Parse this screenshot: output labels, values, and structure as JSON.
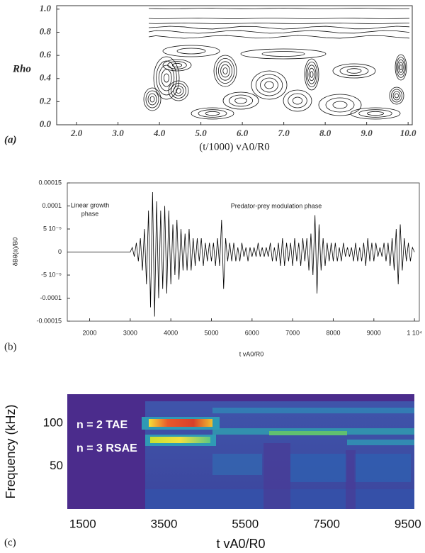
{
  "chart_data": [
    {
      "type": "contour",
      "panel_label": "(a)",
      "ylabel": "Rho",
      "xlabel": "(t/1000) vA0/R0",
      "xlim": [
        1.52,
        10.1
      ],
      "ylim": [
        0,
        1.03
      ],
      "xticks": [
        {
          "value": 2,
          "label": "2.0"
        },
        {
          "value": 3,
          "label": "3.0"
        },
        {
          "value": 4,
          "label": "4.0"
        },
        {
          "value": 5,
          "label": "5.0"
        },
        {
          "value": 6,
          "label": "6.0"
        },
        {
          "value": 7,
          "label": "7.0"
        },
        {
          "value": 8,
          "label": "8.0"
        },
        {
          "value": 9,
          "label": "9.0"
        },
        {
          "value": 10,
          "label": "10.0"
        }
      ],
      "yticks": [
        {
          "value": 0,
          "label": "0.0"
        },
        0.2,
        0.4,
        0.6,
        0.8,
        {
          "value": 1,
          "label": "1.0"
        }
      ]
    },
    {
      "type": "line",
      "panel_label": "(b)",
      "ylabel": "δBθ(a)/B0",
      "xlabel": "t vA0/R0",
      "color": "#000000",
      "annotations": [
        "Linear growth",
        "phase",
        "Predator-prey modulation phase"
      ],
      "xlim": [
        1450,
        10120
      ],
      "ylim": [
        -0.00015,
        0.00015
      ],
      "xticks": [
        2000,
        3000,
        4000,
        5000,
        6000,
        7000,
        8000,
        9000,
        {
          "value": 10000,
          "label": "1 10⁴"
        }
      ],
      "yticks": [
        0.00015,
        0.0001,
        {
          "value": 5e-05,
          "label": "5 10⁻⁵"
        },
        0,
        {
          "value": -5e-05,
          "label": "-5 10⁻⁵"
        },
        -0.0001,
        -0.00015
      ],
      "x": [
        1500,
        3000,
        3050,
        3100,
        3150,
        3200,
        3250,
        3300,
        3350,
        3400,
        3450,
        3500,
        3550,
        3600,
        3650,
        3700,
        3750,
        3800,
        3850,
        3900,
        3950,
        4000,
        4050,
        4100,
        4150,
        4200,
        4250,
        4300,
        4350,
        4400,
        4450,
        4500,
        4550,
        4600,
        4650,
        4700,
        4750,
        4800,
        4850,
        4900,
        4950,
        5000,
        5050,
        5100,
        5150,
        5200,
        5250,
        5300,
        5350,
        5400,
        5450,
        5500,
        5550,
        5600,
        5650,
        5700,
        5750,
        5800,
        5850,
        5900,
        5950,
        6000,
        6050,
        6100,
        6150,
        6200,
        6250,
        6300,
        6350,
        6400,
        6450,
        6500,
        6550,
        6600,
        6650,
        6700,
        6750,
        6800,
        6850,
        6900,
        6950,
        7000,
        7050,
        7100,
        7150,
        7200,
        7250,
        7300,
        7350,
        7400,
        7450,
        7500,
        7550,
        7600,
        7650,
        7700,
        7750,
        7800,
        7850,
        7900,
        7950,
        8000,
        8050,
        8100,
        8150,
        8200,
        8250,
        8300,
        8350,
        8400,
        8450,
        8500,
        8550,
        8600,
        8650,
        8700,
        8750,
        8800,
        8850,
        8900,
        8950,
        9000,
        9050,
        9100,
        9150,
        9200,
        9250,
        9300,
        9350,
        9400,
        9450,
        9500,
        9550,
        9600,
        9650,
        9700,
        9750,
        9800,
        9850,
        9900,
        9950,
        10000
      ],
      "values": [
        0,
        0,
        1e-05,
        -1e-05,
        2e-05,
        -2e-05,
        3e-05,
        -4e-05,
        5e-05,
        -7e-05,
        9e-05,
        -0.00012,
        0.00013,
        -0.00014,
        0.00011,
        -0.0001,
        9e-05,
        -8e-05,
        0.0001,
        -9e-05,
        9e-05,
        -7e-05,
        6e-05,
        -5e-05,
        7e-05,
        -6e-05,
        5e-05,
        -4e-05,
        4e-05,
        -4e-05,
        5e-05,
        -4e-05,
        3e-05,
        -3e-05,
        3e-05,
        -2e-05,
        3e-05,
        -3e-05,
        2e-05,
        -2e-05,
        2e-05,
        -2e-05,
        2e-05,
        -3e-05,
        3e-05,
        -3e-05,
        7e-05,
        -8e-05,
        3e-05,
        -2e-05,
        2e-05,
        -2e-05,
        2e-05,
        -2e-05,
        1e-05,
        -2e-05,
        2e-05,
        -1e-05,
        1e-05,
        -2e-05,
        1e-05,
        -1e-05,
        1e-05,
        -1e-05,
        2e-05,
        -1e-05,
        1e-05,
        -1e-05,
        1e-05,
        -1e-05,
        2e-05,
        -2e-05,
        1e-05,
        -2e-05,
        2e-05,
        -3e-05,
        3e-05,
        -3e-05,
        2e-05,
        -2e-05,
        2e-05,
        -3e-05,
        3e-05,
        -2e-05,
        2e-05,
        -3e-05,
        3e-05,
        -2e-05,
        3e-05,
        -4e-05,
        4e-05,
        -5e-05,
        8e-05,
        -9e-05,
        6e-05,
        -4e-05,
        3e-05,
        -3e-05,
        2e-05,
        -2e-05,
        2e-05,
        -2e-05,
        2e-05,
        -2e-05,
        1e-05,
        -2e-05,
        2e-05,
        -1e-05,
        1e-05,
        -1e-05,
        1e-05,
        -2e-05,
        2e-05,
        -2e-05,
        1e-05,
        -2e-05,
        2e-05,
        -3e-05,
        3e-05,
        -2e-05,
        2e-05,
        -2e-05,
        2e-05,
        -1e-05,
        1e-05,
        -1e-05,
        2e-05,
        -2e-05,
        2e-05,
        -3e-05,
        3e-05,
        -4e-05,
        5e-05,
        -7e-05,
        6e-05,
        -4e-05,
        3e-05,
        -2e-05,
        2e-05,
        -2e-05,
        1e-05,
        0
      ]
    },
    {
      "type": "heatmap",
      "panel_label": "(c)",
      "ylabel": "Frequency (kHz)",
      "xlabel": "t vA0/R0",
      "annotations": [
        "n = 2 TAE",
        "n = 3 RSAE"
      ],
      "xlim": [
        1120,
        9660
      ],
      "ylim": [
        0,
        134
      ],
      "xticks": [
        1500,
        3500,
        5500,
        7500,
        9500
      ],
      "yticks": [
        50,
        100
      ]
    }
  ]
}
